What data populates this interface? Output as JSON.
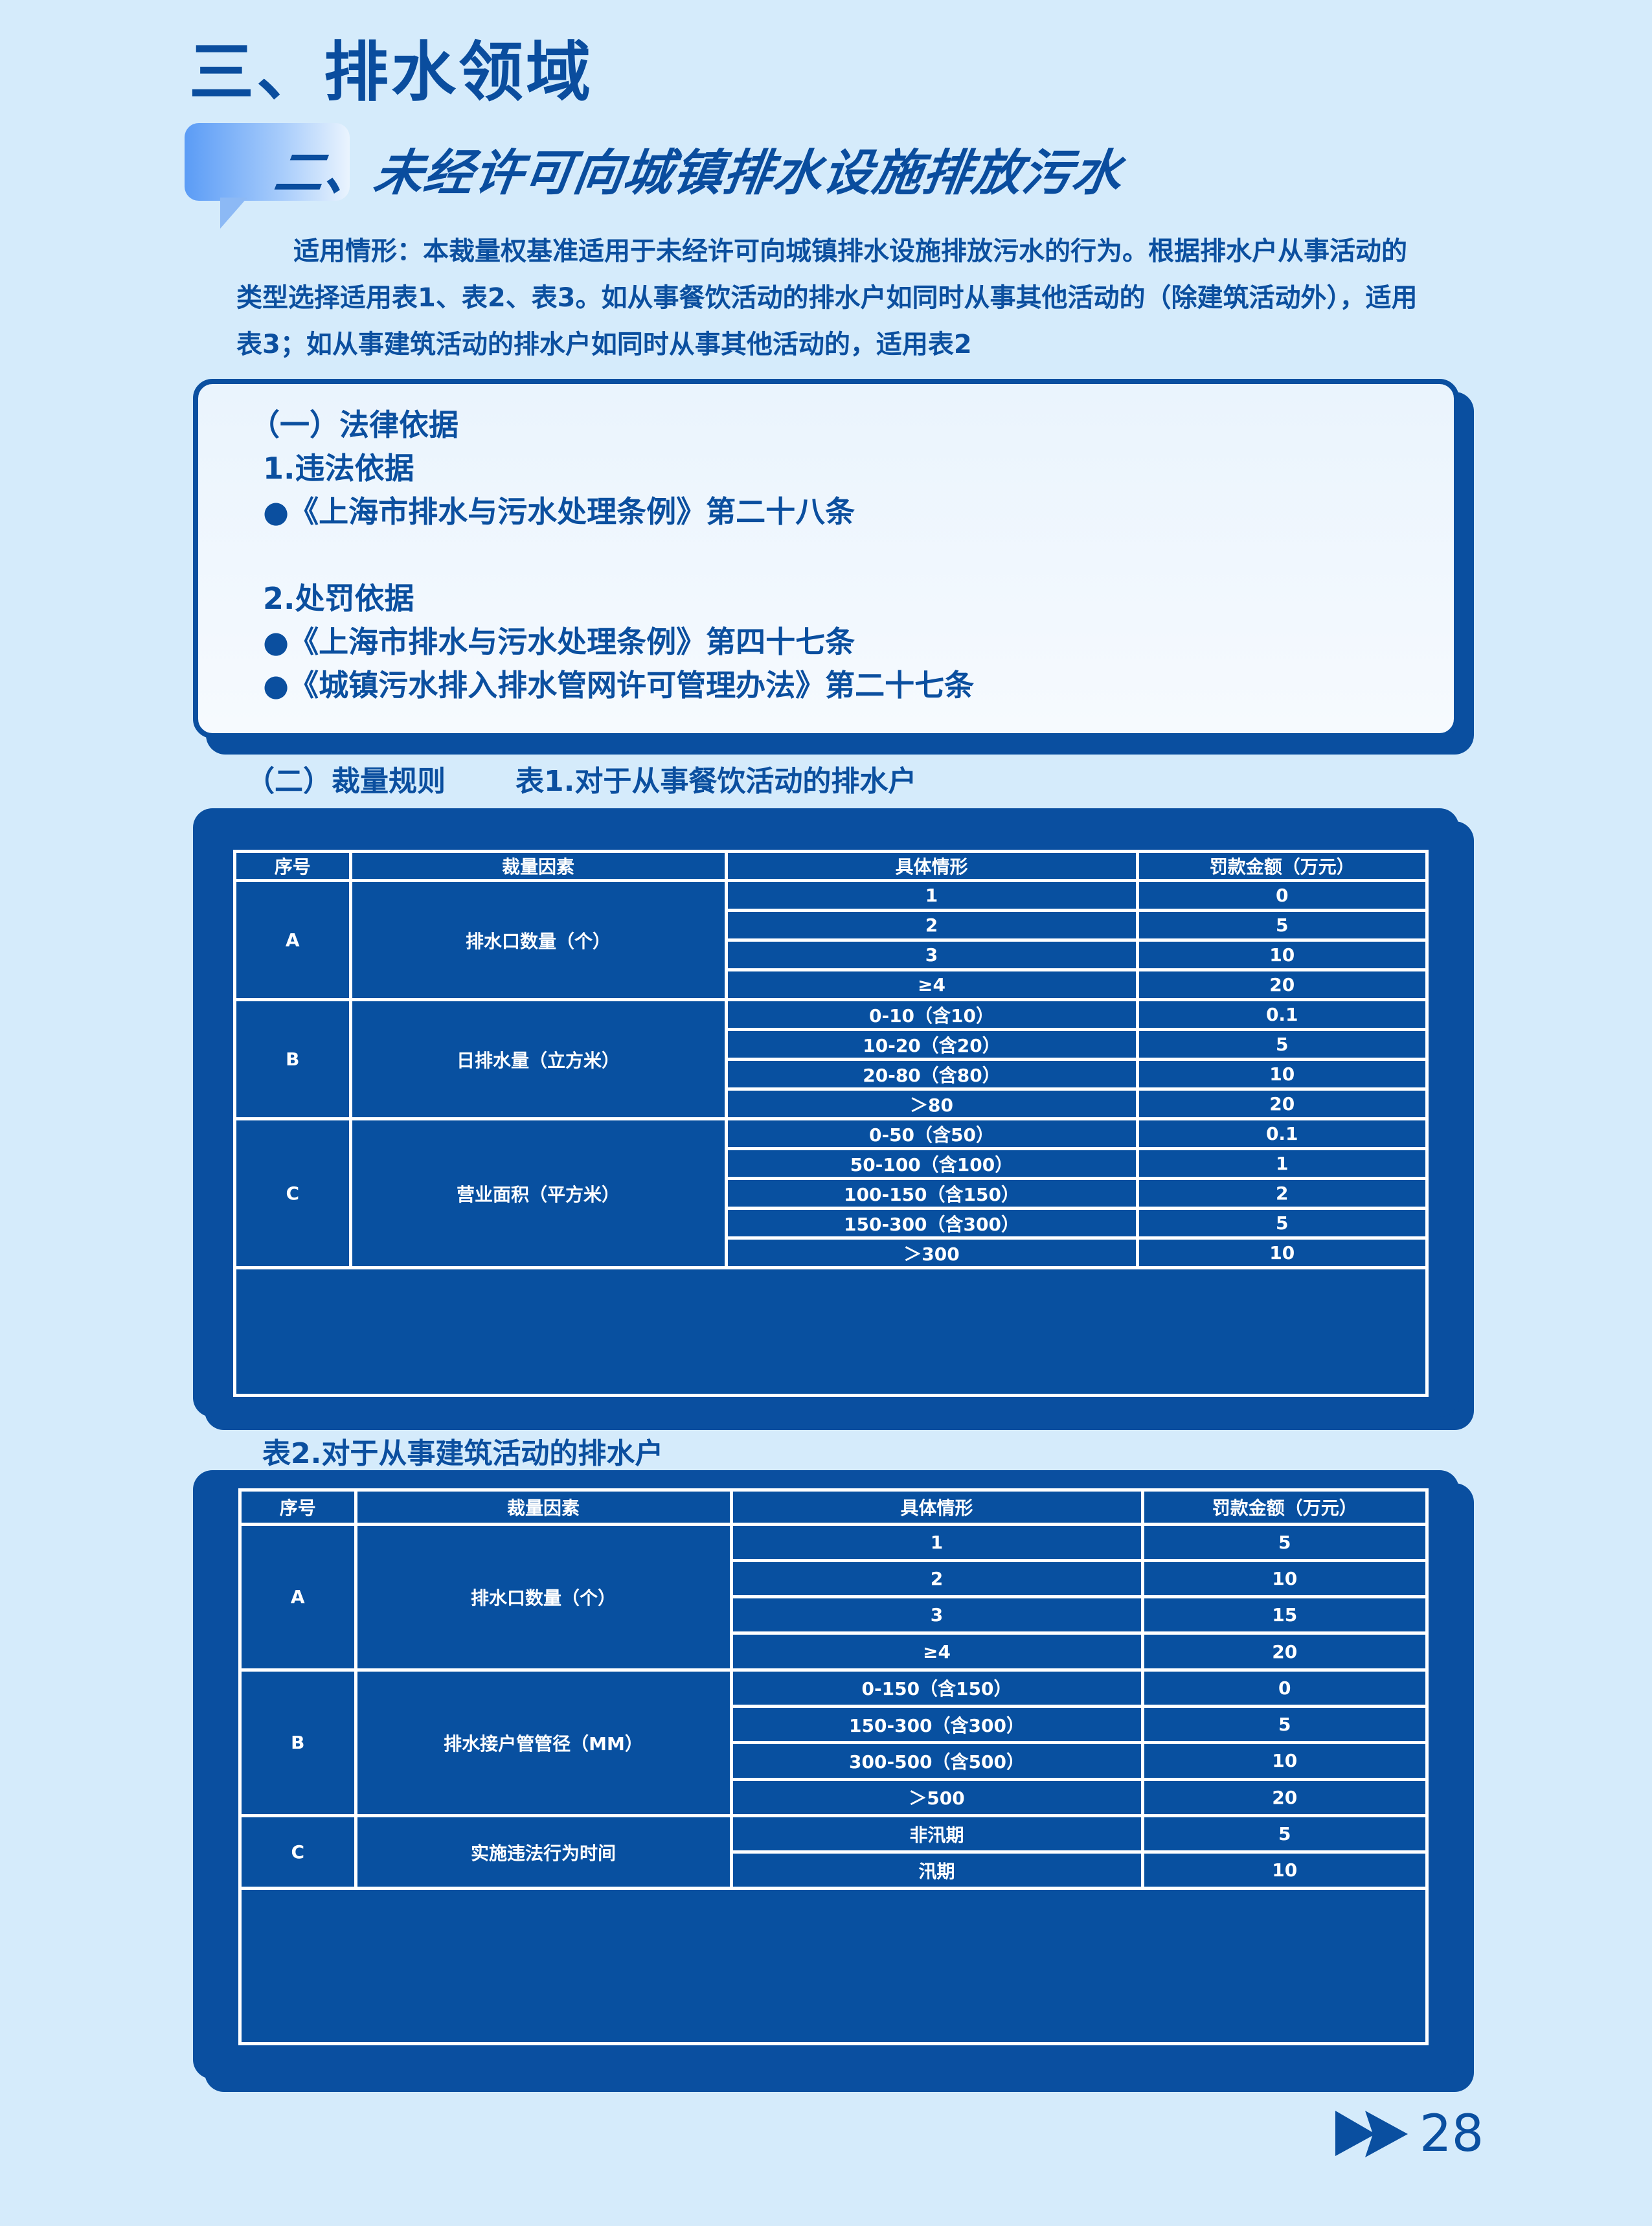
{
  "section_title": "三、排水领域",
  "subtitle": "二、未经许可向城镇排水设施排放污水",
  "applicability": "适用情形：本裁量权基准适用于未经许可向城镇排水设施排放污水的行为。根据排水户从事活动的类型选择适用表1、表2、表3。如从事餐饮活动的排水户如同时从事其他活动的（除建筑活动外），适用表3；如从事建筑活动的排水户如同时从事其他活动的，适用表2",
  "legal": {
    "heading": "（一）法律依据",
    "violation_heading": "1.违法依据",
    "violation_items": [
      "●《上海市排水与污水处理条例》第二十八条"
    ],
    "penalty_heading": "2.处罚依据",
    "penalty_items": [
      "●《上海市排水与污水处理条例》第四十七条",
      "●《城镇污水排入排水管网许可管理办法》第二十七条"
    ]
  },
  "rules_heading": "（二）裁量规则",
  "table1": {
    "caption": "表1.对于从事餐饮活动的排水户",
    "headers": [
      "序号",
      "裁量因素",
      "具体情形",
      "罚款金额（万元）"
    ],
    "groups": [
      {
        "id": "A",
        "factor": "排水口数量（个）",
        "rows": [
          [
            "1",
            "0"
          ],
          [
            "2",
            "5"
          ],
          [
            "3",
            "10"
          ],
          [
            "≥4",
            "20"
          ]
        ]
      },
      {
        "id": "B",
        "factor": "日排水量（立方米）",
        "rows": [
          [
            "0-10（含10）",
            "0.1"
          ],
          [
            "10-20（含20）",
            "5"
          ],
          [
            "20-80（含80）",
            "10"
          ],
          [
            "＞80",
            "20"
          ]
        ]
      },
      {
        "id": "C",
        "factor": "营业面积（平方米）",
        "rows": [
          [
            "0-50（含50）",
            "0.1"
          ],
          [
            "50-100（含100）",
            "1"
          ],
          [
            "100-150（含150）",
            "2"
          ],
          [
            "150-300（含300）",
            "5"
          ],
          [
            "＞300",
            "10"
          ]
        ]
      }
    ]
  },
  "table2": {
    "caption": "表2.对于从事建筑活动的排水户",
    "headers": [
      "序号",
      "裁量因素",
      "具体情形",
      "罚款金额（万元）"
    ],
    "groups": [
      {
        "id": "A",
        "factor": "排水口数量（个）",
        "rows": [
          [
            "1",
            "5"
          ],
          [
            "2",
            "10"
          ],
          [
            "3",
            "15"
          ],
          [
            "≥4",
            "20"
          ]
        ]
      },
      {
        "id": "B",
        "factor": "排水接户管管径（MM）",
        "rows": [
          [
            "0-150（含150）",
            "0"
          ],
          [
            "150-300（含300）",
            "5"
          ],
          [
            "300-500（含500）",
            "10"
          ],
          [
            "＞500",
            "20"
          ]
        ]
      },
      {
        "id": "C",
        "factor": "实施违法行为时间",
        "rows": [
          [
            "非汛期",
            "5"
          ],
          [
            "汛期",
            "10"
          ]
        ]
      }
    ]
  },
  "page_number": "28",
  "colors": {
    "background": "#d5ebfb",
    "brand_blue": "#0a4fa0",
    "table_fill": "#0850a0"
  }
}
